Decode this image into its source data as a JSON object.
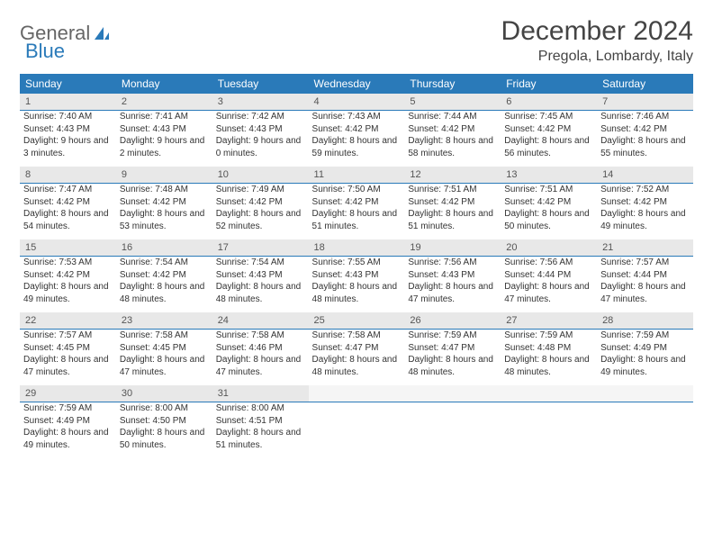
{
  "logo": {
    "part1": "General",
    "part2": "Blue"
  },
  "title": "December 2024",
  "location": "Pregola, Lombardy, Italy",
  "colors": {
    "header_bg": "#2a7ab9",
    "header_text": "#ffffff",
    "daynum_bg": "#e8e8e8",
    "border": "#2a7ab9",
    "body_text": "#333333"
  },
  "day_names": [
    "Sunday",
    "Monday",
    "Tuesday",
    "Wednesday",
    "Thursday",
    "Friday",
    "Saturday"
  ],
  "days": [
    {
      "n": "1",
      "sr": "7:40 AM",
      "ss": "4:43 PM",
      "dl": "9 hours and 3 minutes."
    },
    {
      "n": "2",
      "sr": "7:41 AM",
      "ss": "4:43 PM",
      "dl": "9 hours and 2 minutes."
    },
    {
      "n": "3",
      "sr": "7:42 AM",
      "ss": "4:43 PM",
      "dl": "9 hours and 0 minutes."
    },
    {
      "n": "4",
      "sr": "7:43 AM",
      "ss": "4:42 PM",
      "dl": "8 hours and 59 minutes."
    },
    {
      "n": "5",
      "sr": "7:44 AM",
      "ss": "4:42 PM",
      "dl": "8 hours and 58 minutes."
    },
    {
      "n": "6",
      "sr": "7:45 AM",
      "ss": "4:42 PM",
      "dl": "8 hours and 56 minutes."
    },
    {
      "n": "7",
      "sr": "7:46 AM",
      "ss": "4:42 PM",
      "dl": "8 hours and 55 minutes."
    },
    {
      "n": "8",
      "sr": "7:47 AM",
      "ss": "4:42 PM",
      "dl": "8 hours and 54 minutes."
    },
    {
      "n": "9",
      "sr": "7:48 AM",
      "ss": "4:42 PM",
      "dl": "8 hours and 53 minutes."
    },
    {
      "n": "10",
      "sr": "7:49 AM",
      "ss": "4:42 PM",
      "dl": "8 hours and 52 minutes."
    },
    {
      "n": "11",
      "sr": "7:50 AM",
      "ss": "4:42 PM",
      "dl": "8 hours and 51 minutes."
    },
    {
      "n": "12",
      "sr": "7:51 AM",
      "ss": "4:42 PM",
      "dl": "8 hours and 51 minutes."
    },
    {
      "n": "13",
      "sr": "7:51 AM",
      "ss": "4:42 PM",
      "dl": "8 hours and 50 minutes."
    },
    {
      "n": "14",
      "sr": "7:52 AM",
      "ss": "4:42 PM",
      "dl": "8 hours and 49 minutes."
    },
    {
      "n": "15",
      "sr": "7:53 AM",
      "ss": "4:42 PM",
      "dl": "8 hours and 49 minutes."
    },
    {
      "n": "16",
      "sr": "7:54 AM",
      "ss": "4:42 PM",
      "dl": "8 hours and 48 minutes."
    },
    {
      "n": "17",
      "sr": "7:54 AM",
      "ss": "4:43 PM",
      "dl": "8 hours and 48 minutes."
    },
    {
      "n": "18",
      "sr": "7:55 AM",
      "ss": "4:43 PM",
      "dl": "8 hours and 48 minutes."
    },
    {
      "n": "19",
      "sr": "7:56 AM",
      "ss": "4:43 PM",
      "dl": "8 hours and 47 minutes."
    },
    {
      "n": "20",
      "sr": "7:56 AM",
      "ss": "4:44 PM",
      "dl": "8 hours and 47 minutes."
    },
    {
      "n": "21",
      "sr": "7:57 AM",
      "ss": "4:44 PM",
      "dl": "8 hours and 47 minutes."
    },
    {
      "n": "22",
      "sr": "7:57 AM",
      "ss": "4:45 PM",
      "dl": "8 hours and 47 minutes."
    },
    {
      "n": "23",
      "sr": "7:58 AM",
      "ss": "4:45 PM",
      "dl": "8 hours and 47 minutes."
    },
    {
      "n": "24",
      "sr": "7:58 AM",
      "ss": "4:46 PM",
      "dl": "8 hours and 47 minutes."
    },
    {
      "n": "25",
      "sr": "7:58 AM",
      "ss": "4:47 PM",
      "dl": "8 hours and 48 minutes."
    },
    {
      "n": "26",
      "sr": "7:59 AM",
      "ss": "4:47 PM",
      "dl": "8 hours and 48 minutes."
    },
    {
      "n": "27",
      "sr": "7:59 AM",
      "ss": "4:48 PM",
      "dl": "8 hours and 48 minutes."
    },
    {
      "n": "28",
      "sr": "7:59 AM",
      "ss": "4:49 PM",
      "dl": "8 hours and 49 minutes."
    },
    {
      "n": "29",
      "sr": "7:59 AM",
      "ss": "4:49 PM",
      "dl": "8 hours and 49 minutes."
    },
    {
      "n": "30",
      "sr": "8:00 AM",
      "ss": "4:50 PM",
      "dl": "8 hours and 50 minutes."
    },
    {
      "n": "31",
      "sr": "8:00 AM",
      "ss": "4:51 PM",
      "dl": "8 hours and 51 minutes."
    }
  ],
  "labels": {
    "sunrise": "Sunrise: ",
    "sunset": "Sunset: ",
    "daylight": "Daylight: "
  }
}
